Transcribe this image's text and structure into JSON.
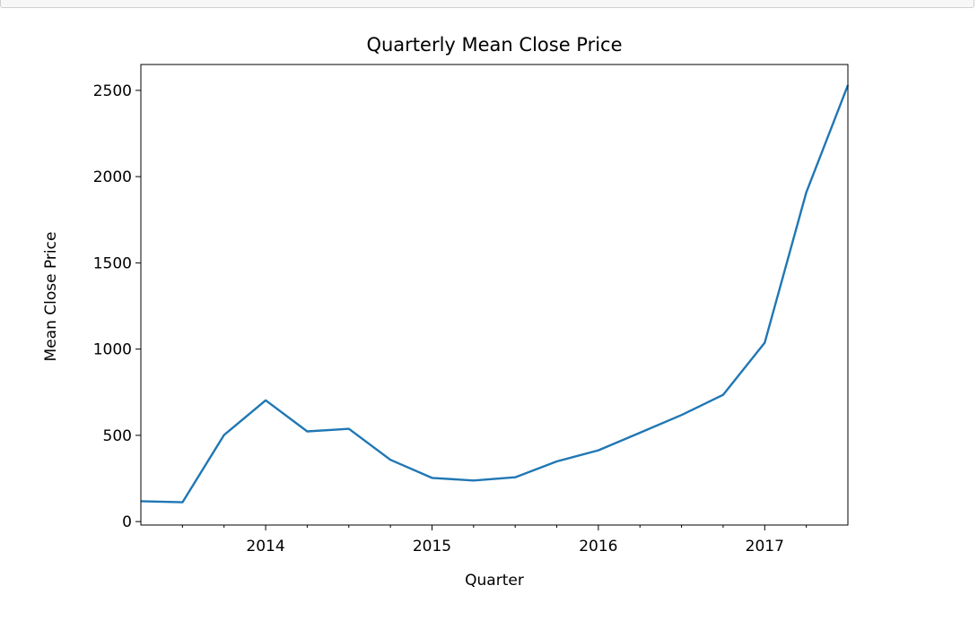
{
  "chart_data": {
    "type": "line",
    "title": "Quarterly Mean Close Price",
    "xlabel": "Quarter",
    "ylabel": "Mean Close Price",
    "xlim": [
      2013.25,
      2017.5
    ],
    "ylim": [
      -20,
      2650
    ],
    "x_ticks": [
      {
        "value": 2014,
        "label": "2014"
      },
      {
        "value": 2015,
        "label": "2015"
      },
      {
        "value": 2016,
        "label": "2016"
      },
      {
        "value": 2017,
        "label": "2017"
      }
    ],
    "x_minor_ticks": [
      2013.5,
      2013.75,
      2014.25,
      2014.5,
      2014.75,
      2015.25,
      2015.5,
      2015.75,
      2016.25,
      2016.5,
      2016.75,
      2017.25
    ],
    "y_ticks": [
      {
        "value": 0,
        "label": "0"
      },
      {
        "value": 500,
        "label": "500"
      },
      {
        "value": 1000,
        "label": "1000"
      },
      {
        "value": 1500,
        "label": "1500"
      },
      {
        "value": 2000,
        "label": "2000"
      },
      {
        "value": 2500,
        "label": "2500"
      }
    ],
    "grid": false,
    "series": [
      {
        "color": "#1f77b4",
        "x": [
          2013.25,
          2013.5,
          2013.75,
          2014.0,
          2014.25,
          2014.5,
          2014.75,
          2015.0,
          2015.25,
          2015.5,
          2015.75,
          2016.0,
          2016.25,
          2016.5,
          2016.75,
          2017.0,
          2017.25,
          2017.5
        ],
        "values": [
          118,
          112,
          502,
          703,
          523,
          538,
          358,
          253,
          238,
          257,
          349,
          413,
          515,
          618,
          735,
          1037,
          1908,
          2530
        ]
      }
    ]
  }
}
